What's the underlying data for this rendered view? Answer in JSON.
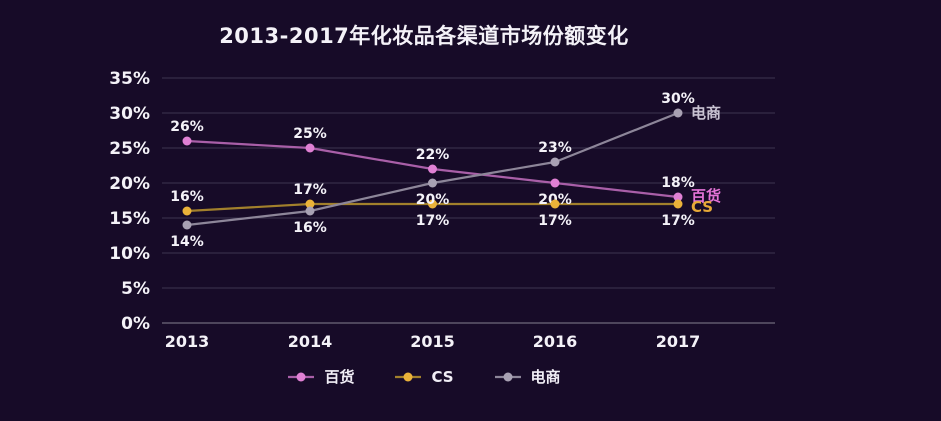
{
  "title": "2013-2017年化妆品各渠道市场份额变化",
  "colors": {
    "background": "#170b28",
    "text": "#f4f2f8",
    "gridline": "#3c3550",
    "axis_line": "#605a6e",
    "value_label": "#f4f2f8"
  },
  "chart_data": {
    "type": "line",
    "title": "2013-2017年化妆品各渠道市场份额变化",
    "categories": [
      "2013",
      "2014",
      "2015",
      "2016",
      "2017"
    ],
    "series": [
      {
        "name": "百货",
        "values": [
          26,
          25,
          22,
          20,
          18
        ],
        "value_labels": [
          "26%",
          "25%",
          "22%",
          "20%",
          "18%"
        ],
        "value_label_position": [
          "above",
          "above",
          "above",
          "below",
          "above"
        ],
        "line_color": "#a95fa8",
        "dot_color": "#e080d4",
        "name_label_color": "#e473d6"
      },
      {
        "name": "CS",
        "values": [
          16,
          17,
          17,
          17,
          17
        ],
        "value_labels": [
          "16%",
          "17%",
          "17%",
          "17%",
          "17%"
        ],
        "value_label_position": [
          "above",
          "above",
          "below",
          "below",
          "below"
        ],
        "line_color": "#a2802c",
        "dot_color": "#eab239",
        "name_label_color": "#e7a937"
      },
      {
        "name": "电商",
        "values": [
          14,
          16,
          20,
          23,
          30
        ],
        "value_labels": [
          "14%",
          "16%",
          "20%",
          "23%",
          "30%"
        ],
        "value_label_position": [
          "below",
          "below",
          "below",
          "above",
          "above"
        ],
        "line_color": "#8d8699",
        "dot_color": "#a8a1b3",
        "name_label_color": "#c9c3d2"
      }
    ],
    "xlabel": "",
    "ylabel": "",
    "ylim": [
      0,
      35
    ],
    "y_tick_step": 5,
    "y_tick_labels": [
      "0%",
      "5%",
      "10%",
      "15%",
      "20%",
      "25%",
      "30%",
      "35%"
    ],
    "grid": true,
    "legend_position": "bottom",
    "value_suffix": "%"
  }
}
